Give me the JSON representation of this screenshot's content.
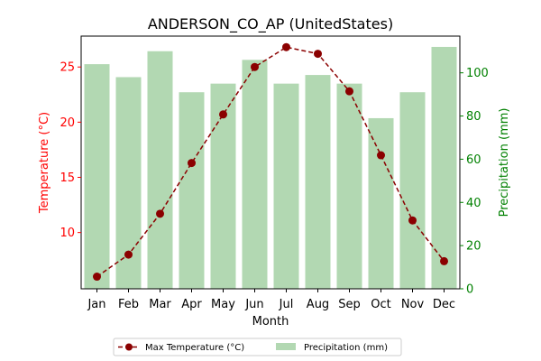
{
  "chart_data": {
    "type": "bar+line",
    "title": "ANDERSON_CO_AP (UnitedStates)",
    "xlabel": "Month",
    "ylabel_left": "Temperature (°C)",
    "ylabel_right": "Precipitation (mm)",
    "categories": [
      "Jan",
      "Feb",
      "Mar",
      "Apr",
      "May",
      "Jun",
      "Jul",
      "Aug",
      "Sep",
      "Oct",
      "Nov",
      "Dec"
    ],
    "series": [
      {
        "name": "Max Temperature (°C)",
        "kind": "line",
        "axis": "left",
        "color": "#8b0000",
        "values": [
          6.0,
          8.0,
          11.7,
          16.3,
          20.7,
          25.0,
          26.8,
          26.2,
          22.8,
          17.0,
          11.1,
          7.4
        ]
      },
      {
        "name": "Precipitation (mm)",
        "kind": "bar",
        "axis": "right",
        "color": "#b2d8b2",
        "values": [
          104,
          98,
          110,
          91,
          95,
          106,
          95,
          99,
          95,
          79,
          91,
          112
        ]
      }
    ],
    "ylim_left": [
      4.9,
      27.8
    ],
    "ylim_right": [
      0,
      117
    ],
    "yticks_left": [
      "10",
      "15",
      "20",
      "25"
    ],
    "yticks_right": [
      "0",
      "20",
      "40",
      "60",
      "80",
      "100"
    ],
    "left_axis_color": "#ff0000",
    "right_axis_color": "#008000",
    "grid": false,
    "legend_position": "bottom-center"
  }
}
